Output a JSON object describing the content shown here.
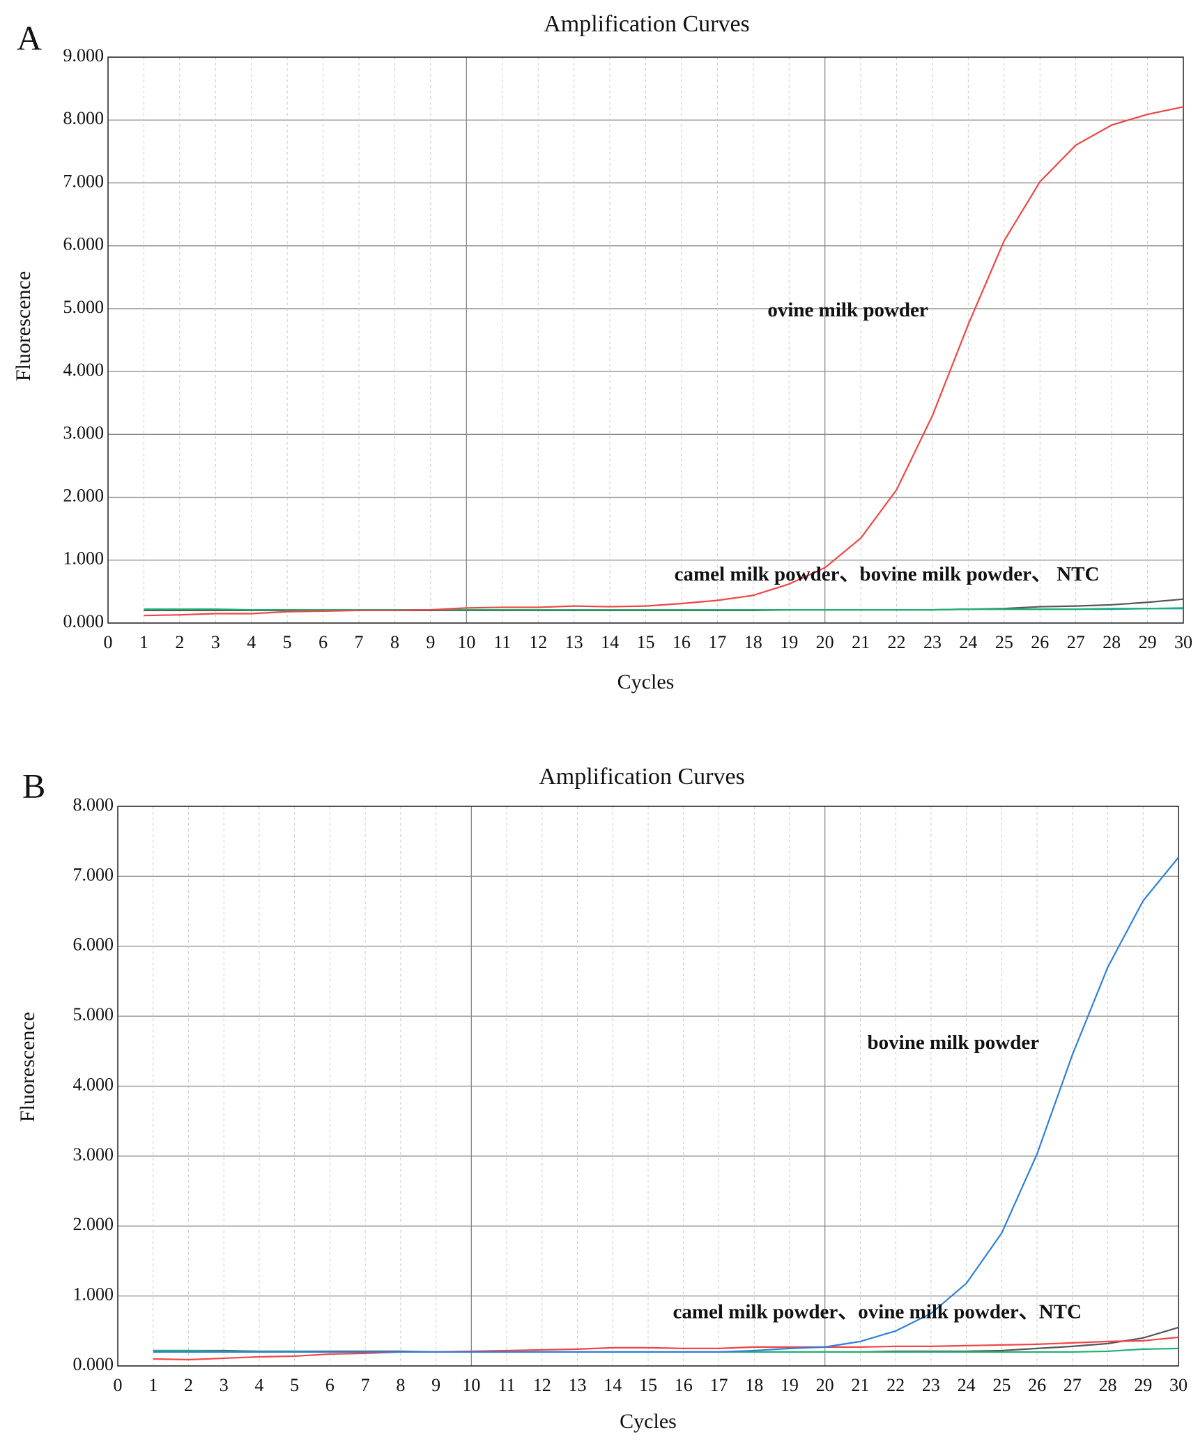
{
  "chart_data": [
    {
      "type": "line",
      "panel": "A",
      "title": "Amplification Curves",
      "xlabel": "Cycles",
      "ylabel": "Fluorescence",
      "x": [
        1,
        2,
        3,
        4,
        5,
        6,
        7,
        8,
        9,
        10,
        11,
        12,
        13,
        14,
        15,
        16,
        17,
        18,
        19,
        20,
        21,
        22,
        23,
        24,
        25,
        26,
        27,
        28,
        29,
        30
      ],
      "series": [
        {
          "color": "#1f9bd0",
          "values": [
            0.2,
            0.2,
            0.2,
            0.2,
            0.2,
            0.2,
            0.2,
            0.2,
            0.2,
            0.21,
            0.21,
            0.21,
            0.21,
            0.21,
            0.21,
            0.21,
            0.21,
            0.21,
            0.21,
            0.21,
            0.21,
            0.21,
            0.21,
            0.22,
            0.22,
            0.22,
            0.22,
            0.22,
            0.23,
            0.23
          ]
        },
        {
          "color": "#555555",
          "values": [
            0.2,
            0.2,
            0.2,
            0.2,
            0.2,
            0.2,
            0.2,
            0.2,
            0.2,
            0.2,
            0.2,
            0.2,
            0.2,
            0.2,
            0.2,
            0.2,
            0.2,
            0.2,
            0.21,
            0.21,
            0.21,
            0.21,
            0.21,
            0.22,
            0.23,
            0.26,
            0.27,
            0.29,
            0.33,
            0.38
          ]
        },
        {
          "color": "#20b070",
          "values": [
            0.22,
            0.22,
            0.22,
            0.21,
            0.21,
            0.21,
            0.21,
            0.21,
            0.21,
            0.21,
            0.21,
            0.21,
            0.21,
            0.21,
            0.21,
            0.21,
            0.21,
            0.21,
            0.21,
            0.21,
            0.21,
            0.21,
            0.21,
            0.22,
            0.22,
            0.22,
            0.22,
            0.23,
            0.23,
            0.24
          ]
        },
        {
          "color": "#f04545",
          "values": [
            0.12,
            0.13,
            0.15,
            0.15,
            0.18,
            0.19,
            0.2,
            0.2,
            0.21,
            0.24,
            0.25,
            0.25,
            0.27,
            0.26,
            0.27,
            0.31,
            0.36,
            0.44,
            0.62,
            0.88,
            1.35,
            2.12,
            3.3,
            4.75,
            6.08,
            7.02,
            7.6,
            7.92,
            8.09,
            8.21
          ]
        }
      ],
      "xlim": [
        0,
        30
      ],
      "ylim": [
        0,
        9
      ],
      "xticks": [
        0,
        1,
        2,
        3,
        4,
        5,
        6,
        7,
        8,
        9,
        10,
        11,
        12,
        13,
        14,
        15,
        16,
        17,
        18,
        19,
        20,
        21,
        22,
        23,
        24,
        25,
        26,
        27,
        28,
        29,
        30
      ],
      "yticks": [
        {
          "value": 0,
          "label": "0.000"
        },
        {
          "value": 1,
          "label": "1.000"
        },
        {
          "value": 2,
          "label": "2.000"
        },
        {
          "value": 3,
          "label": "3.000"
        },
        {
          "value": 4,
          "label": "4.000"
        },
        {
          "value": 5,
          "label": "5.000"
        },
        {
          "value": 6,
          "label": "6.000"
        },
        {
          "value": 7,
          "label": "7.000"
        },
        {
          "value": 8,
          "label": "8.000"
        },
        {
          "value": 9,
          "label": "9.000"
        }
      ],
      "grid": true,
      "annotations": [
        "ovine milk powder",
        "camel milk powder、bovine milk powder、 NTC"
      ]
    },
    {
      "type": "line",
      "panel": "B",
      "title": "Amplification Curves",
      "xlabel": "Cycles",
      "ylabel": "Fluorescence",
      "x": [
        1,
        2,
        3,
        4,
        5,
        6,
        7,
        8,
        9,
        10,
        11,
        12,
        13,
        14,
        15,
        16,
        17,
        18,
        19,
        20,
        21,
        22,
        23,
        24,
        25,
        26,
        27,
        28,
        29,
        30
      ],
      "series": [
        {
          "color": "#555555",
          "values": [
            0.22,
            0.22,
            0.22,
            0.21,
            0.21,
            0.21,
            0.21,
            0.21,
            0.2,
            0.2,
            0.2,
            0.2,
            0.2,
            0.2,
            0.2,
            0.2,
            0.2,
            0.2,
            0.2,
            0.2,
            0.2,
            0.21,
            0.21,
            0.21,
            0.22,
            0.25,
            0.28,
            0.32,
            0.4,
            0.55
          ]
        },
        {
          "color": "#20b070",
          "values": [
            0.22,
            0.22,
            0.21,
            0.21,
            0.21,
            0.2,
            0.2,
            0.2,
            0.2,
            0.2,
            0.2,
            0.2,
            0.2,
            0.2,
            0.2,
            0.2,
            0.2,
            0.2,
            0.2,
            0.2,
            0.2,
            0.2,
            0.2,
            0.2,
            0.2,
            0.2,
            0.2,
            0.21,
            0.24,
            0.25
          ]
        },
        {
          "color": "#f04545",
          "values": [
            0.1,
            0.09,
            0.11,
            0.13,
            0.14,
            0.17,
            0.18,
            0.2,
            0.2,
            0.21,
            0.22,
            0.23,
            0.24,
            0.26,
            0.26,
            0.25,
            0.25,
            0.27,
            0.27,
            0.27,
            0.27,
            0.28,
            0.28,
            0.29,
            0.3,
            0.31,
            0.33,
            0.35,
            0.36,
            0.41
          ]
        },
        {
          "color": "#2f7fd8",
          "values": [
            0.2,
            0.2,
            0.2,
            0.2,
            0.2,
            0.2,
            0.2,
            0.2,
            0.2,
            0.2,
            0.2,
            0.2,
            0.2,
            0.2,
            0.2,
            0.2,
            0.2,
            0.22,
            0.25,
            0.27,
            0.35,
            0.5,
            0.75,
            1.18,
            1.9,
            3.03,
            4.45,
            5.7,
            6.65,
            7.27
          ]
        }
      ],
      "xlim": [
        0,
        30
      ],
      "ylim": [
        0,
        8
      ],
      "xticks": [
        0,
        1,
        2,
        3,
        4,
        5,
        6,
        7,
        8,
        9,
        10,
        11,
        12,
        13,
        14,
        15,
        16,
        17,
        18,
        19,
        20,
        21,
        22,
        23,
        24,
        25,
        26,
        27,
        28,
        29,
        30
      ],
      "yticks": [
        {
          "value": 0,
          "label": "0.000"
        },
        {
          "value": 1,
          "label": "1.000"
        },
        {
          "value": 2,
          "label": "2.000"
        },
        {
          "value": 3,
          "label": "3.000"
        },
        {
          "value": 4,
          "label": "4.000"
        },
        {
          "value": 5,
          "label": "5.000"
        },
        {
          "value": 6,
          "label": "6.000"
        },
        {
          "value": 7,
          "label": "7.000"
        },
        {
          "value": 8,
          "label": "8.000"
        }
      ],
      "grid": true,
      "annotations": [
        "bovine milk powder",
        "camel milk powder、ovine milk powder、NTC"
      ]
    }
  ]
}
